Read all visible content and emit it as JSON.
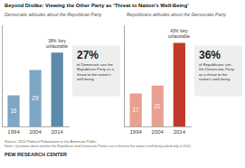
{
  "title": "Beyond Dislike: Viewing the Other Party as ‘Threat to Nation’s Well-Being’",
  "annotations": [
    {
      "text": "Source: 2014 Political Polarization in the American Public."
    },
    {
      "text": "Notes: Questions about whether the Republican and Democratic Parties are a threat to the nation's well-being asked only in 2014."
    },
    {
      "text": "PEW RESEARCH CENTER"
    }
  ],
  "chart_data": [
    {
      "type": "bar",
      "subtitle": "Democratic attitudes about the Republican Party",
      "categories": [
        "1994",
        "2004",
        "2014"
      ],
      "values": [
        16,
        29,
        38
      ],
      "colors": [
        "#7da7c4",
        "#7da7c4",
        "#5a8aa8"
      ],
      "value_labels": [
        "16",
        "29",
        null
      ],
      "ylim": [
        0,
        52
      ],
      "yticks": [],
      "tick_labels": "x",
      "grid": false,
      "annotations": [
        {
          "text": "38% Very\nunfavorable",
          "x": "2014"
        },
        {
          "text": "27%"
        },
        {
          "text": "of Democrats see the\nRepublican Party as a\nthreat to the nation’s\nwell-being"
        }
      ]
    },
    {
      "type": "bar",
      "subtitle": "Republicans attitudes about the Democratic Party",
      "categories": [
        "1994",
        "2004",
        "2014"
      ],
      "values": [
        17,
        21,
        43
      ],
      "colors": [
        "#e8a090",
        "#e8a090",
        "#c0392b"
      ],
      "value_labels": [
        "17",
        "21",
        null
      ],
      "ylim": [
        0,
        52
      ],
      "yticks": [],
      "tick_labels": "x",
      "grid": false,
      "annotations": [
        {
          "text": "43% Very\nunfavorable",
          "x": "2014"
        },
        {
          "text": "36%"
        },
        {
          "text": "of Republicans see\nthe Democratic Party\nas a threat to the\nnation’s well-being"
        }
      ]
    }
  ]
}
